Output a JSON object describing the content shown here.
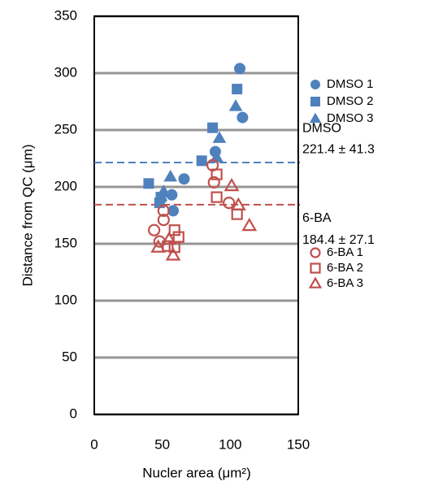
{
  "chart_data": {
    "type": "scatter",
    "x_label": "Nucler area (μm²)",
    "y_label": "Distance from QC (μm)",
    "xlim": [
      0,
      150
    ],
    "xticks": [
      0,
      50,
      100,
      150
    ],
    "ylim": [
      0,
      350
    ],
    "yticks": [
      0,
      50,
      100,
      150,
      200,
      250,
      300,
      350
    ],
    "grid": true,
    "legend": "right",
    "series": [
      {
        "name": "DMSO 1",
        "color": "#4f81bd",
        "marker": "circle",
        "filled": true,
        "x": [
          107,
          109,
          89,
          66,
          57,
          58
        ],
        "values": [
          304,
          261,
          231,
          207,
          193,
          179
        ]
      },
      {
        "name": "DMSO 2",
        "color": "#4f81bd",
        "marker": "square",
        "filled": true,
        "x": [
          105,
          87,
          79,
          40,
          49,
          48
        ],
        "values": [
          286,
          252,
          223,
          203,
          191,
          186
        ]
      },
      {
        "name": "DMSO 3",
        "color": "#4f81bd",
        "marker": "triangle",
        "filled": true,
        "x": [
          104,
          92,
          90,
          56,
          51,
          49
        ],
        "values": [
          271,
          243,
          226,
          209,
          196,
          192
        ]
      },
      {
        "name": "6-BA 1",
        "color": "#c0504d",
        "marker": "circle",
        "filled": false,
        "x": [
          87,
          88,
          99,
          51,
          51,
          44,
          48
        ],
        "values": [
          219,
          204,
          186,
          179,
          171,
          162,
          152
        ]
      },
      {
        "name": "6-BA 2",
        "color": "#c0504d",
        "marker": "square",
        "filled": false,
        "x": [
          90,
          90,
          105,
          59,
          62,
          59,
          54
        ],
        "values": [
          191,
          211,
          176,
          162,
          156,
          147,
          148
        ]
      },
      {
        "name": "6-BA 3",
        "color": "#c0504d",
        "marker": "triangle",
        "filled": false,
        "x": [
          101,
          106,
          114,
          47,
          58,
          55
        ],
        "values": [
          201,
          184,
          166,
          147,
          140,
          154
        ]
      }
    ],
    "mean_lines": [
      {
        "label": "DMSO",
        "value": 221.4,
        "value_label": "221.4 ± 41.3",
        "color": "#4f81bd"
      },
      {
        "label": "6-BA",
        "value": 184.4,
        "value_label": "184.4 ± 27.1",
        "color": "#c0504d"
      }
    ]
  }
}
